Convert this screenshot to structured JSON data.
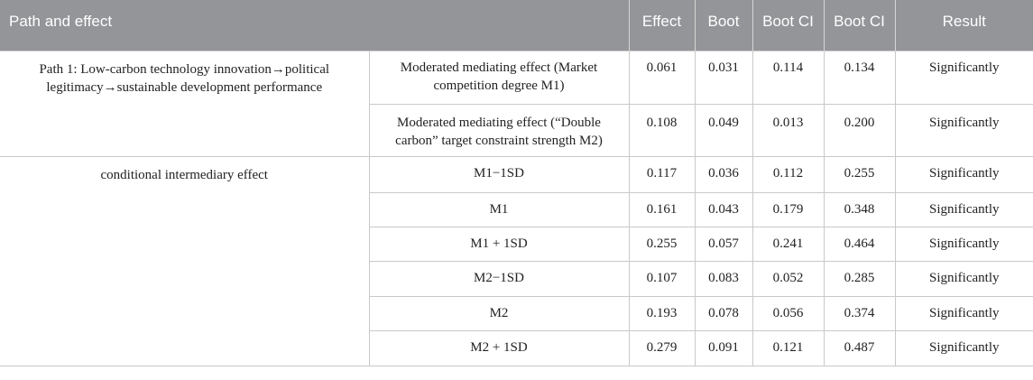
{
  "headers": [
    "Path and effect",
    "",
    "Effect",
    "Boot",
    "Boot CI",
    "Boot CI",
    "Result"
  ],
  "groups": [
    {
      "label": "Path 1: Low-carbon technology innovation→political legitimacy→sustainable development performance",
      "rows": [
        {
          "sub": "Moderated mediating effect (Market competition degree M1)",
          "effect": "0.061",
          "boot": "0.031",
          "ci_low": "0.114",
          "ci_high": "0.134",
          "result": "Significantly"
        },
        {
          "sub": "Moderated mediating effect (“Double carbon” target constraint strength M2)",
          "effect": "0.108",
          "boot": "0.049",
          "ci_low": "0.013",
          "ci_high": "0.200",
          "result": "Significantly"
        }
      ]
    },
    {
      "label": "conditional intermediary effect",
      "rows": [
        {
          "sub": "M1−1SD",
          "effect": "0.117",
          "boot": "0.036",
          "ci_low": "0.112",
          "ci_high": "0.255",
          "result": "Significantly"
        },
        {
          "sub": "M1",
          "effect": "0.161",
          "boot": "0.043",
          "ci_low": "0.179",
          "ci_high": "0.348",
          "result": "Significantly"
        },
        {
          "sub": "M1 + 1SD",
          "effect": "0.255",
          "boot": "0.057",
          "ci_low": "0.241",
          "ci_high": "0.464",
          "result": "Significantly"
        },
        {
          "sub": "M2−1SD",
          "effect": "0.107",
          "boot": "0.083",
          "ci_low": "0.052",
          "ci_high": "0.285",
          "result": "Significantly"
        },
        {
          "sub": "M2",
          "effect": "0.193",
          "boot": "0.078",
          "ci_low": "0.056",
          "ci_high": "0.374",
          "result": "Significantly"
        },
        {
          "sub": "M2 + 1SD",
          "effect": "0.279",
          "boot": "0.091",
          "ci_low": "0.121",
          "ci_high": "0.487",
          "result": "Significantly"
        }
      ]
    }
  ]
}
